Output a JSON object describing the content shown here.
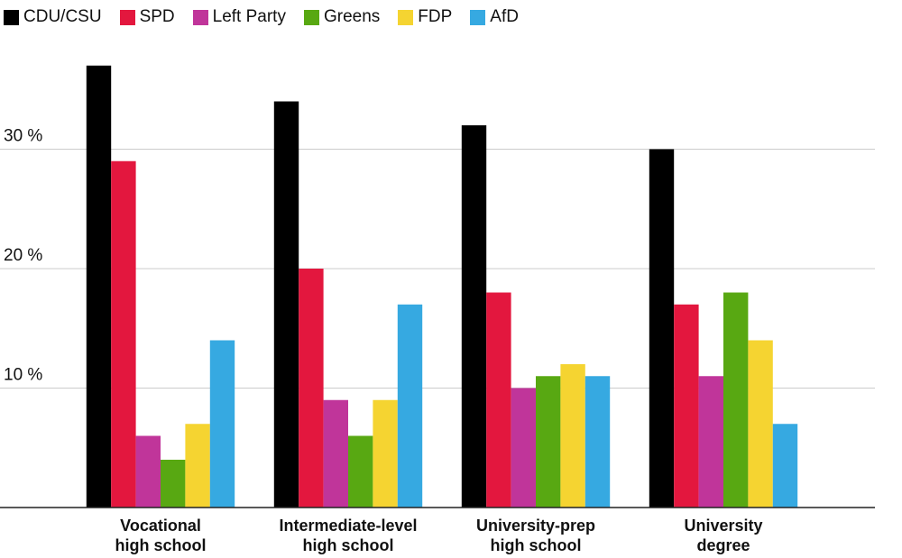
{
  "chart_data": {
    "type": "bar",
    "categories": [
      "Vocational\nhigh school",
      "Intermediate-level\nhigh school",
      "University-prep\nhigh school",
      "University\ndegree"
    ],
    "series": [
      {
        "name": "CDU/CSU",
        "color": "#000000",
        "values": [
          37,
          34,
          32,
          30
        ]
      },
      {
        "name": "SPD",
        "color": "#e3173e",
        "values": [
          29,
          20,
          18,
          17
        ]
      },
      {
        "name": "Left Party",
        "color": "#c0359a",
        "values": [
          6,
          9,
          10,
          11
        ]
      },
      {
        "name": "Greens",
        "color": "#58a812",
        "values": [
          4,
          6,
          11,
          18
        ]
      },
      {
        "name": "FDP",
        "color": "#f5d431",
        "values": [
          7,
          9,
          12,
          14
        ]
      },
      {
        "name": "AfD",
        "color": "#36a9e1",
        "values": [
          14,
          17,
          11,
          7
        ]
      }
    ],
    "ylim": [
      0,
      40
    ],
    "yticks": [
      {
        "value": 10,
        "label": "10 %"
      },
      {
        "value": 20,
        "label": "20 %"
      },
      {
        "value": 30,
        "label": "30 %"
      }
    ],
    "grid": true
  }
}
